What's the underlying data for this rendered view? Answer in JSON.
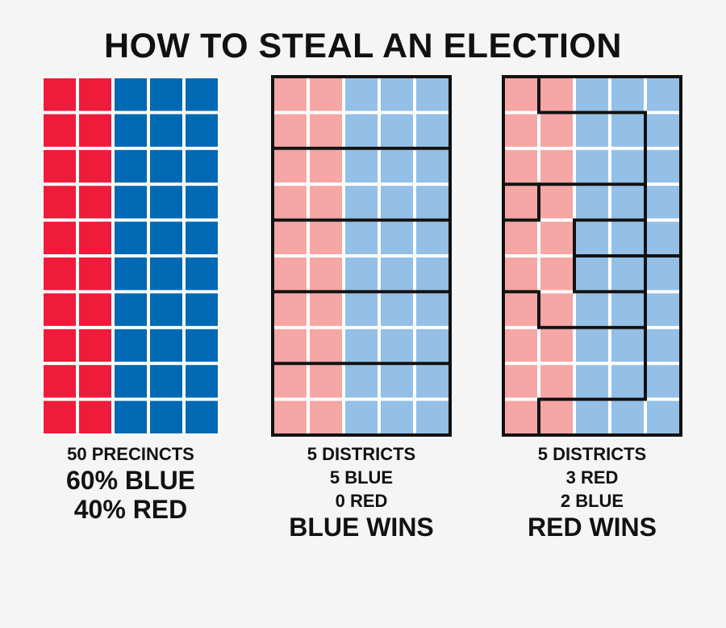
{
  "title": "HOW TO STEAL AN ELECTION",
  "colors": {
    "solid_red": "#ee1b3b",
    "solid_blue": "#0069b4",
    "light_red": "#f6a6a4",
    "light_blue": "#94bfe6",
    "cell_gap": "#ffffff",
    "border": "#111111",
    "background": "#f5f5f5"
  },
  "grid": {
    "rows": 10,
    "cols": 5,
    "red_columns": 2,
    "blue_columns": 3
  },
  "panels": [
    {
      "caption_lines": [
        "50 PRECINCTS",
        "60% BLUE",
        "40% RED"
      ],
      "style": "solid",
      "district_count": 0
    },
    {
      "caption_lines": [
        "5 DISTRICTS",
        "5 BLUE",
        "0 RED",
        "BLUE WINS"
      ],
      "style": "light",
      "district_count": 5,
      "district_results": [
        "blue",
        "blue",
        "blue",
        "blue",
        "blue"
      ]
    },
    {
      "caption_lines": [
        "5 DISTRICTS",
        "3 RED",
        "2 BLUE",
        "RED WINS"
      ],
      "style": "light",
      "district_count": 5,
      "district_results": [
        "red",
        "red",
        "red",
        "blue",
        "blue"
      ]
    }
  ]
}
